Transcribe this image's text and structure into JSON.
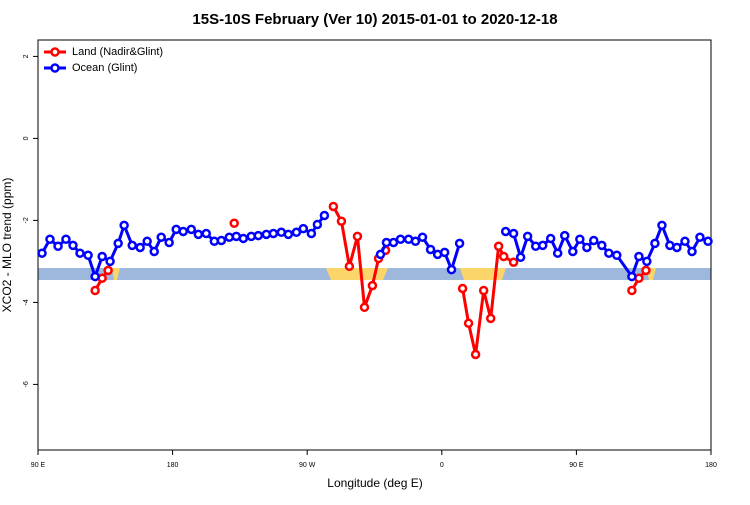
{
  "chart_data": {
    "type": "line",
    "title": "15S-10S February (Ver 10)   2015-01-01 to 2020-12-18",
    "x_label": "Longitude (deg E)",
    "y_label": "XCO2 - MLO trend (ppm)",
    "xlim": [
      90,
      540
    ],
    "ylim": [
      -7.6,
      2.4
    ],
    "xticks": [
      {
        "value": 90,
        "label": "90 E"
      },
      {
        "value": 180,
        "label": "180"
      },
      {
        "value": 270,
        "label": "90 W"
      },
      {
        "value": 360,
        "label": "0"
      },
      {
        "value": 450,
        "label": "90 E"
      },
      {
        "value": 540,
        "label": "180"
      }
    ],
    "yticks": [
      2,
      0,
      -2,
      -4,
      -6
    ],
    "legend": "top-left",
    "series": [
      {
        "name": "Land (Nadir&Glint)",
        "color": "#ff0000",
        "x": [
          128.2,
          132.9,
          136.9,
          null,
          221.2,
          null,
          287.5,
          292.9,
          298.2,
          303.6,
          308.3,
          313.6,
          317.7,
          322.4,
          null,
          373.9,
          377.9,
          382.6,
          388.0,
          392.7,
          398.0,
          401.4,
          408.0,
          null,
          487.1,
          491.8,
          496.5
        ],
        "values": [
          -3.71,
          -3.41,
          -3.22,
          null,
          -2.07,
          null,
          -1.66,
          -2.02,
          -3.12,
          -2.39,
          -4.12,
          -3.59,
          -2.93,
          -2.73,
          null,
          -3.66,
          -4.51,
          -5.27,
          -3.71,
          -4.39,
          -2.63,
          -2.88,
          -3.02,
          null,
          -3.71,
          -3.41,
          -3.22
        ]
      },
      {
        "name": "Ocean (Glint)",
        "color": "#0000ff",
        "x": [
          92.7,
          98.0,
          103.4,
          108.7,
          113.4,
          118.1,
          123.5,
          128.2,
          132.9,
          138.2,
          143.6,
          147.6,
          153.0,
          158.3,
          163.0,
          167.7,
          172.4,
          177.7,
          182.4,
          187.1,
          192.5,
          197.2,
          202.5,
          207.9,
          212.6,
          217.9,
          222.6,
          227.3,
          232.6,
          237.3,
          242.7,
          247.4,
          252.7,
          257.4,
          262.8,
          267.4,
          272.8,
          276.8,
          281.5,
          null,
          319.0,
          323.0,
          327.7,
          332.4,
          337.8,
          342.4,
          347.1,
          352.5,
          357.2,
          361.9,
          366.5,
          371.9,
          null,
          402.7,
          408.0,
          412.7,
          417.4,
          422.8,
          427.5,
          432.8,
          437.5,
          442.2,
          447.6,
          452.3,
          457.0,
          461.6,
          467.0,
          471.7,
          477.0,
          487.1,
          491.8,
          497.1,
          502.5,
          507.2,
          512.5,
          517.2,
          522.6,
          527.3,
          532.6,
          538.0
        ],
        "values": [
          -2.8,
          -2.46,
          -2.63,
          -2.46,
          -2.61,
          -2.8,
          -2.85,
          -3.37,
          -2.88,
          -3.0,
          -2.56,
          -2.12,
          -2.61,
          -2.66,
          -2.51,
          -2.76,
          -2.41,
          -2.54,
          -2.22,
          -2.27,
          -2.22,
          -2.34,
          -2.32,
          -2.51,
          -2.49,
          -2.41,
          -2.39,
          -2.44,
          -2.39,
          -2.37,
          -2.34,
          -2.32,
          -2.29,
          -2.34,
          -2.29,
          -2.2,
          -2.32,
          -2.1,
          -1.88,
          null,
          -2.83,
          -2.54,
          -2.54,
          -2.46,
          -2.46,
          -2.51,
          -2.41,
          -2.71,
          -2.83,
          -2.78,
          -3.2,
          -2.56,
          null,
          -2.27,
          -2.32,
          -2.9,
          -2.39,
          -2.63,
          -2.61,
          -2.44,
          -2.8,
          -2.37,
          -2.76,
          -2.46,
          -2.66,
          -2.49,
          -2.61,
          -2.8,
          -2.85,
          -3.37,
          -2.88,
          -3.0,
          -2.56,
          -2.12,
          -2.61,
          -2.66,
          -2.51,
          -2.76,
          -2.41,
          -2.51
        ]
      }
    ]
  }
}
